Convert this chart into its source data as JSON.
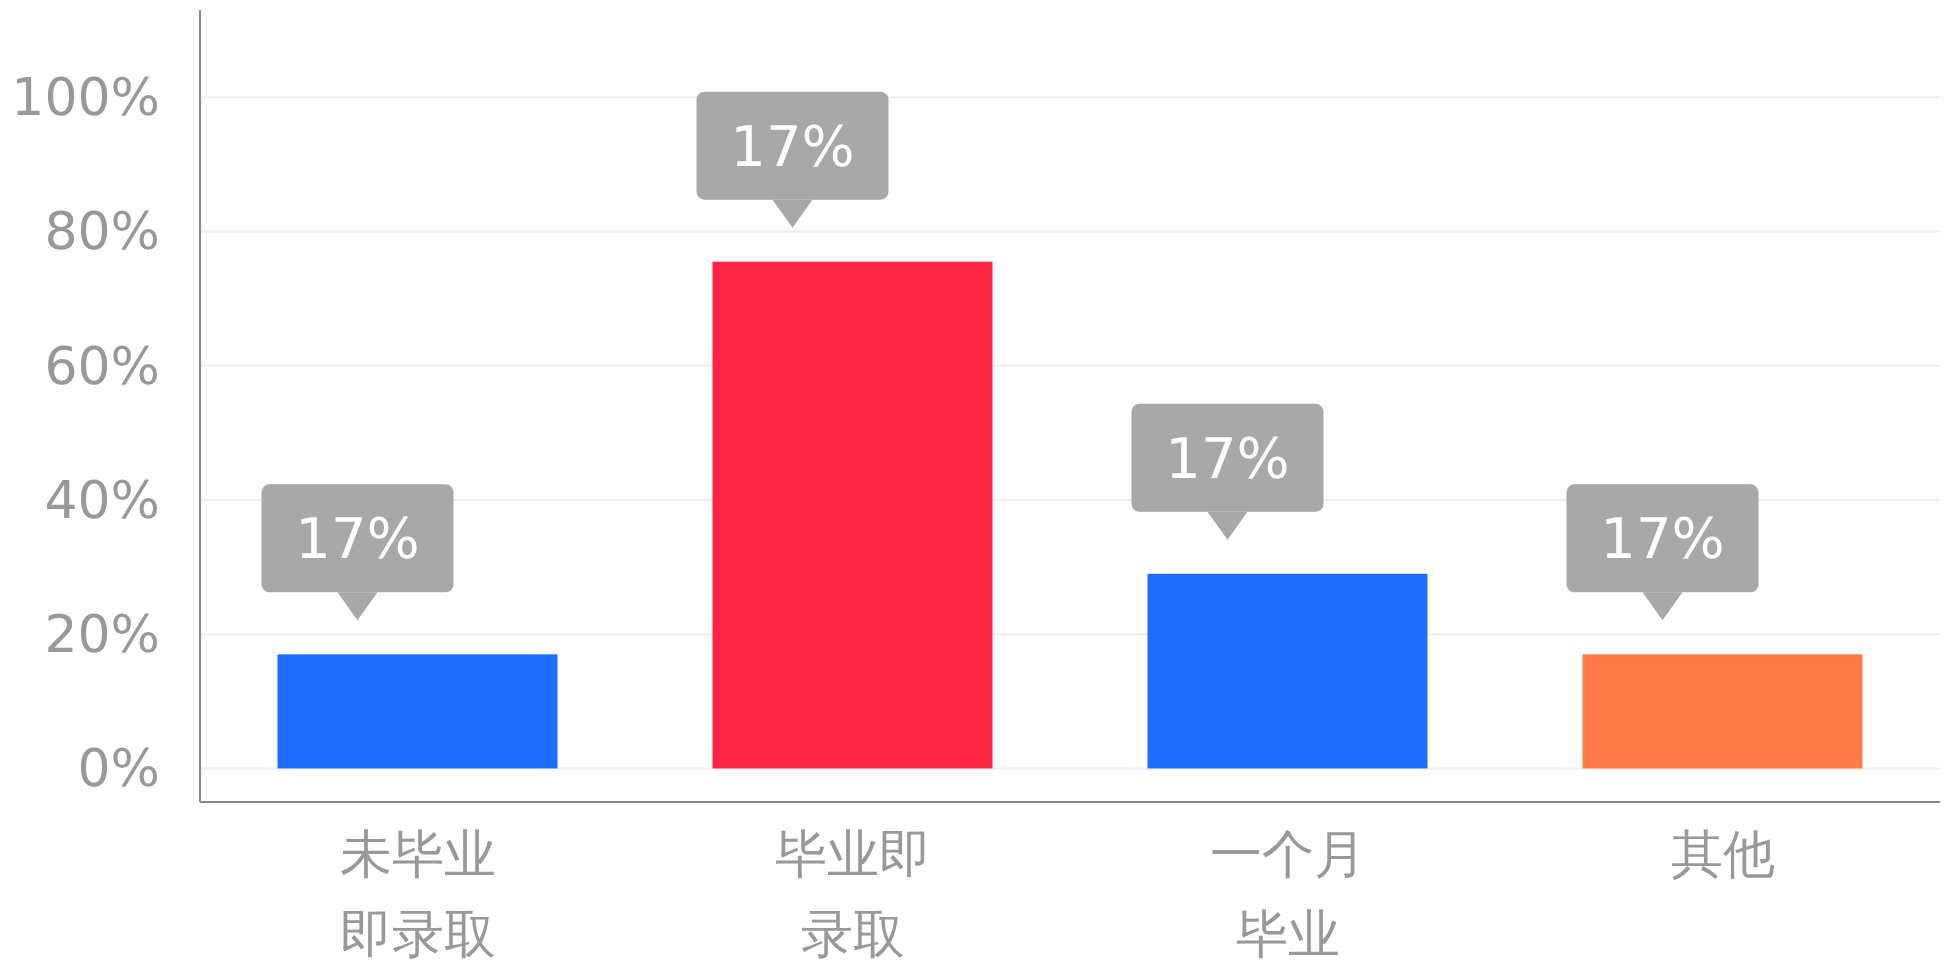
{
  "chart_data": {
    "type": "bar",
    "categories": [
      "未毕业即录取",
      "毕业即录取",
      "一个月毕业",
      "其他"
    ],
    "values": [
      17,
      75.5,
      29,
      17
    ],
    "colors": [
      "#1f6dff",
      "#ff2545",
      "#1f6dff",
      "#ff7a48"
    ],
    "annotations": [
      {
        "text": "17%",
        "x": "未毕业即录取",
        "y": 17
      },
      {
        "text": "17%",
        "x": "毕业即录取",
        "y": 75.5
      },
      {
        "text": "17%",
        "x": "一个月毕业",
        "y": 29
      },
      {
        "text": "17%",
        "x": "其他",
        "y": 17
      }
    ],
    "ylim": [
      -5,
      113
    ],
    "yticks": [
      {
        "value": 0,
        "label": "0%"
      },
      {
        "value": 20,
        "label": "20%"
      },
      {
        "value": 40,
        "label": "40%"
      },
      {
        "value": 60,
        "label": "60%"
      },
      {
        "value": 80,
        "label": "80%"
      },
      {
        "value": 100,
        "label": "100%"
      }
    ],
    "grid": "y"
  }
}
